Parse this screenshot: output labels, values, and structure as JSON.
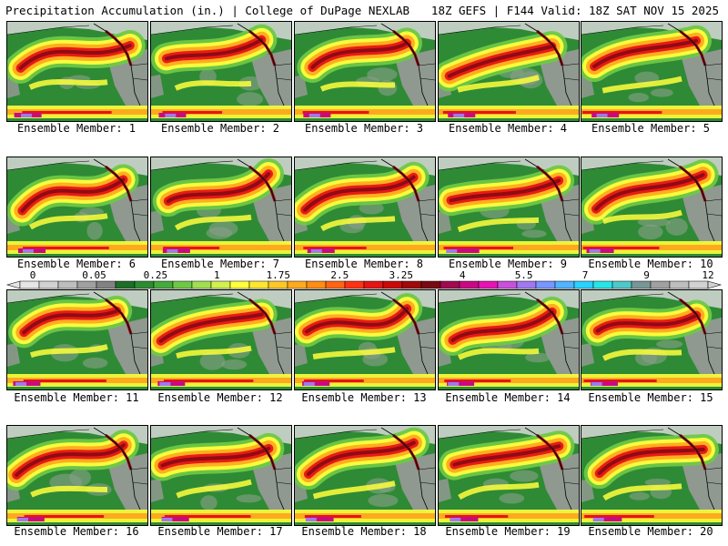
{
  "header": {
    "title_left": "Precipitation Accumulation (in.) | College of DuPage NEXLAB",
    "title_right": "18Z GEFS | F144 Valid: 18Z SAT NOV 15 2025"
  },
  "members": [
    "Ensemble Member: 1",
    "Ensemble Member: 2",
    "Ensemble Member: 3",
    "Ensemble Member: 4",
    "Ensemble Member: 5",
    "Ensemble Member: 6",
    "Ensemble Member: 7",
    "Ensemble Member: 8",
    "Ensemble Member: 9",
    "Ensemble Member: 10",
    "Ensemble Member: 11",
    "Ensemble Member: 12",
    "Ensemble Member: 13",
    "Ensemble Member: 14",
    "Ensemble Member: 15",
    "Ensemble Member: 16",
    "Ensemble Member: 17",
    "Ensemble Member: 18",
    "Ensemble Member: 19",
    "Ensemble Member: 20"
  ],
  "colorbar": {
    "labels": [
      "0",
      "0.05",
      "0.25",
      "1",
      "1.75",
      "2.5",
      "3.25",
      "4",
      "5.5",
      "7",
      "9",
      "12"
    ],
    "colors": [
      "#e6e6e6",
      "#d2d2d2",
      "#bebebe",
      "#a0a0a0",
      "#828282",
      "#1e6e28",
      "#2d8c32",
      "#46aa3c",
      "#6ec846",
      "#a0e050",
      "#d2f050",
      "#ffff3c",
      "#ffe632",
      "#ffc828",
      "#ffaa1e",
      "#ff8c14",
      "#ff6414",
      "#ff3214",
      "#e61414",
      "#c80a0a",
      "#a00a0a",
      "#780a14",
      "#a00a50",
      "#c80a82",
      "#e614b4",
      "#c850dc",
      "#a078f0",
      "#7896ff",
      "#50b4ff",
      "#28d2ff",
      "#28e6e6",
      "#50c8c8",
      "#789696",
      "#a0a0a0",
      "#bebebe",
      "#d2d2d2"
    ]
  },
  "map_colors": {
    "ocean_green": "#2f8a35",
    "light_green": "#6ec846",
    "yellow": "#ffff3c",
    "orange": "#ffaa1e",
    "red": "#e61414",
    "darkred": "#8c0a14",
    "magenta": "#c80a82",
    "purple": "#a078f0",
    "land_gray": "#9a9a9a",
    "land_light": "#d8d8d8",
    "border": "#000000"
  }
}
